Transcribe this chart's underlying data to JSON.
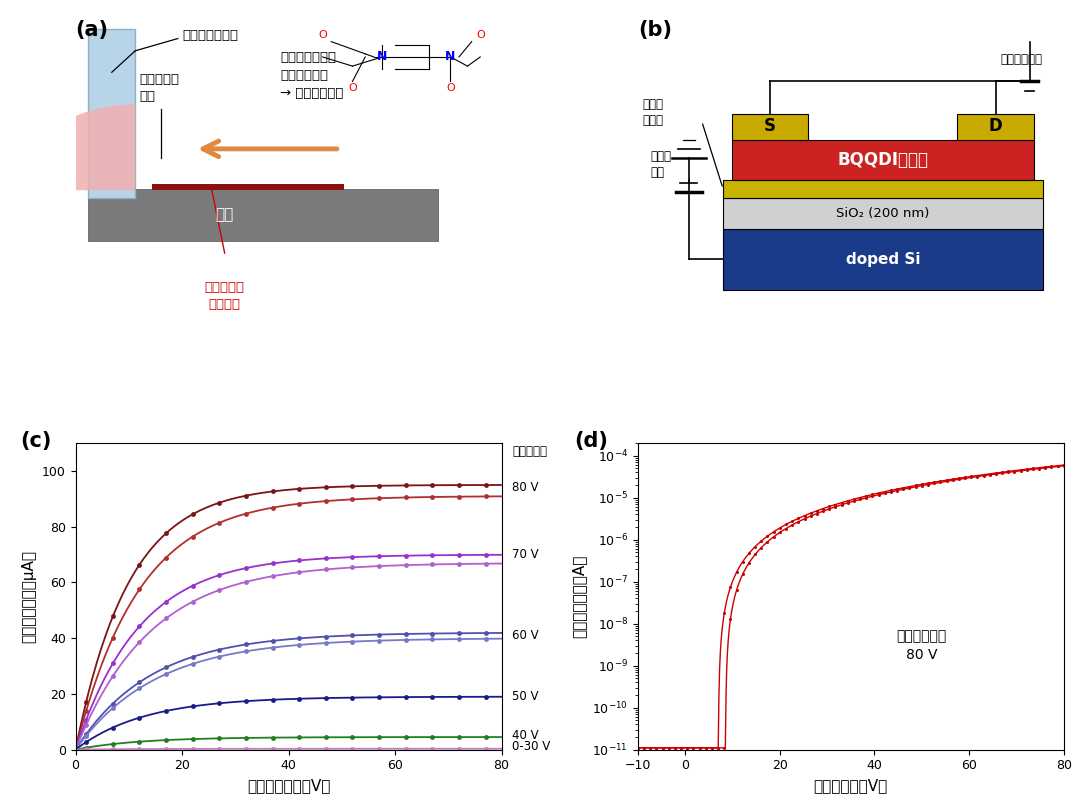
{
  "panel_label_fontsize": 15,
  "panel_label_weight": "bold",
  "subplot_a": {
    "substrate_color": "#7a7a7a",
    "blade_color": "#b8d4e8",
    "liquid_color": "#f0b0b0",
    "crystal_color": "#8b1010",
    "arrow_color": "#e08840",
    "label3_color": "#cc0000"
  },
  "subplot_b": {
    "doped_si_color": "#1a3a8a",
    "sio2_color": "#d0d0d0",
    "polymer_color": "#c8b400",
    "bqqdi_color": "#cc2222",
    "contact_color": "#c8aa00"
  },
  "subplot_c": {
    "xlabel": "ドレイン電圧（V）",
    "ylabel": "ドレイン電流（μA）",
    "gate_label": "ゲート電圧",
    "xlim": [
      0,
      80
    ],
    "ylim": [
      0,
      110
    ],
    "xticks": [
      0,
      20,
      40,
      60,
      80
    ],
    "yticks": [
      0,
      20,
      40,
      60,
      80,
      100
    ],
    "curves": [
      {
        "Isat": 95,
        "color": "#7b1414",
        "tau": 10
      },
      {
        "Isat": 91,
        "color": "#b03030",
        "tau": 12
      },
      {
        "Isat": 70,
        "color": "#9932cc",
        "tau": 12
      },
      {
        "Isat": 67,
        "color": "#b060d0",
        "tau": 14
      },
      {
        "Isat": 42,
        "color": "#5050b0",
        "tau": 14
      },
      {
        "Isat": 40,
        "color": "#7878c8",
        "tau": 15
      },
      {
        "Isat": 19,
        "color": "#1a1a8b",
        "tau": 13
      },
      {
        "Isat": 4.5,
        "color": "#208020",
        "tau": 12
      },
      {
        "Isat": 0.3,
        "color": "#c080c0",
        "tau": 12
      }
    ],
    "right_labels": [
      {
        "text": "80 V",
        "y": 94
      },
      {
        "text": "70 V",
        "y": 70
      },
      {
        "text": "60 V",
        "y": 41
      },
      {
        "text": "50 V",
        "y": 19
      },
      {
        "text": "40 V",
        "y": 5
      },
      {
        "text": "0-30 V",
        "y": 1
      }
    ]
  },
  "subplot_d": {
    "xlabel": "ゲート電圧（V）",
    "ylabel": "ドレイン電流（A）",
    "annotation": "ドレイン電圧\n80 V",
    "xlim": [
      -10,
      80
    ],
    "xticks": [
      -10,
      0,
      20,
      40,
      60,
      80
    ],
    "curve_color": "#cc0000",
    "Vth": 7.0,
    "Ion": 6e-05,
    "Ioff": 1.1e-11,
    "hysteresis_shift": 1.5
  },
  "fontsize_axis_label": 11,
  "fontsize_tick": 9,
  "fontsize_annotation": 10
}
